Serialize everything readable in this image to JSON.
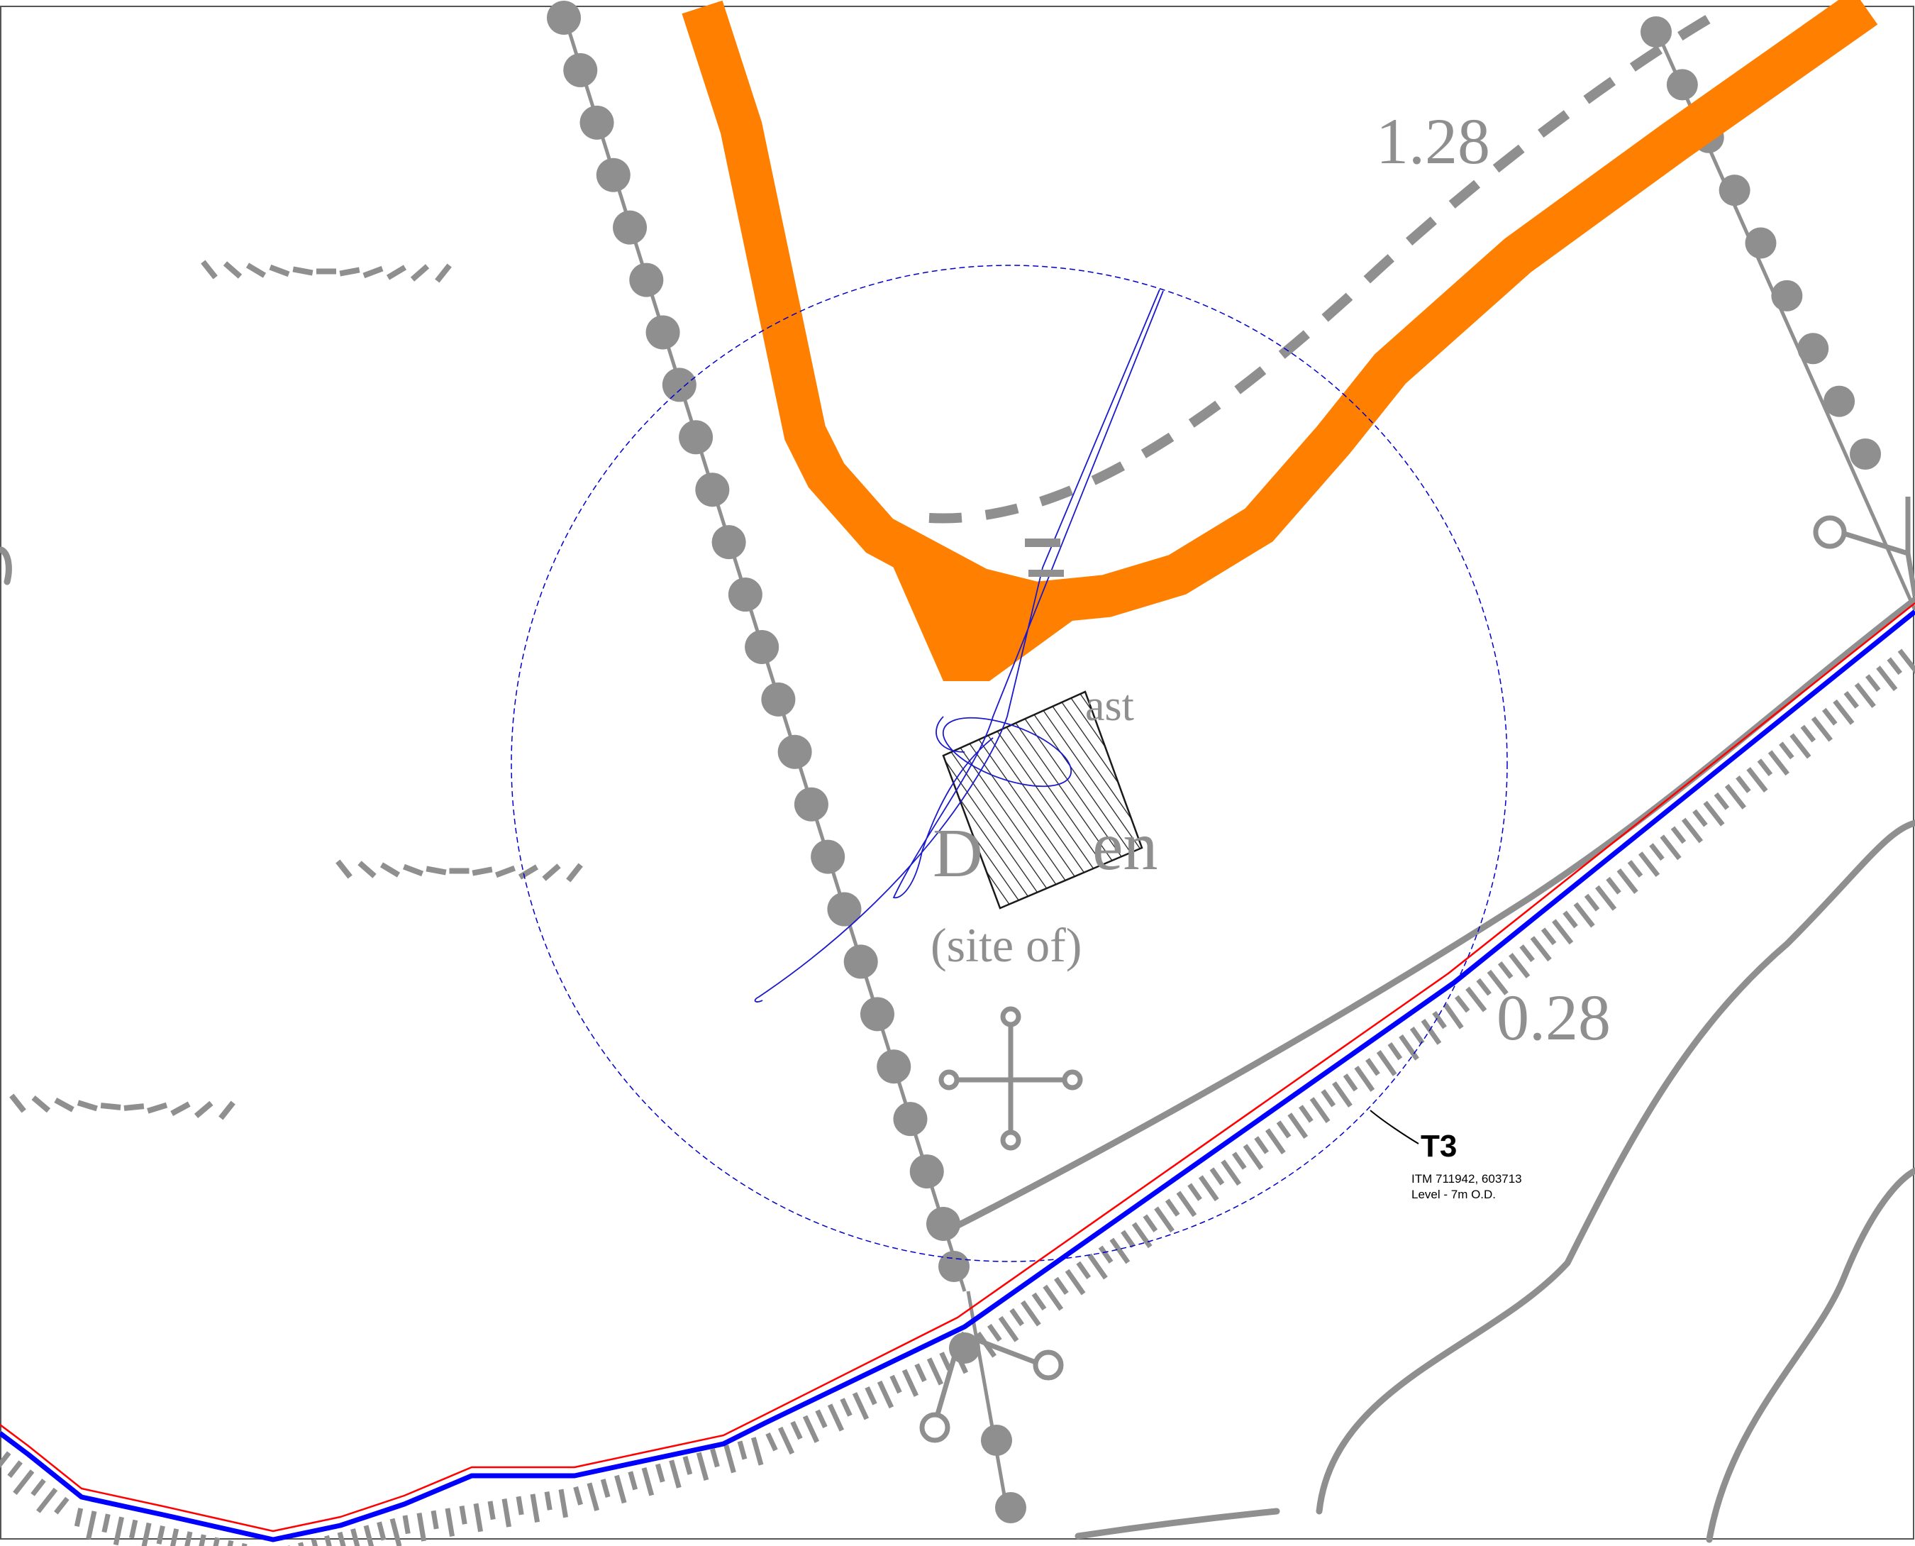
{
  "map": {
    "spot_heights": {
      "upper": "1.28",
      "lower": "0.28"
    },
    "site_text": {
      "line1_fragment": "ast",
      "line2_initial": "D",
      "line2_fragment": "en",
      "line3": "(site of)"
    },
    "marker": {
      "id": "T3",
      "coordinates": "ITM 711942, 603713",
      "level": "Level - 7m O.D."
    },
    "colors": {
      "route_corridor": "#ff7f00",
      "map_base": "#8f8f8f",
      "buffer_circle": "#0000cc",
      "boundary_blue": "#0000ff",
      "boundary_red": "#ff0000",
      "hatch": "#1a1a1a",
      "frame": "#555555"
    },
    "icons": {
      "cross_symbol": "cross-symbol-icon",
      "anchor_symbol": "anchor-symbol-icon"
    }
  }
}
